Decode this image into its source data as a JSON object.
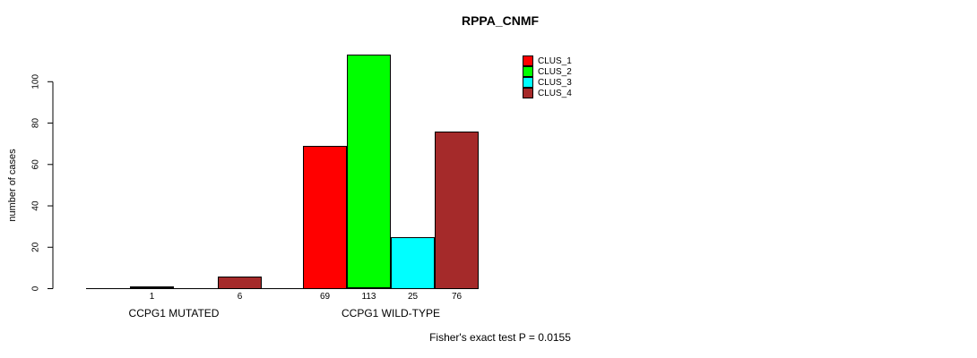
{
  "title": "RPPA_CNMF",
  "ylabel": "number of cases",
  "footer": "Fisher's exact test P = 0.0155",
  "yticks": [
    0,
    20,
    40,
    60,
    80,
    100
  ],
  "legend": [
    {
      "label": "CLUS_1",
      "color": "#FF0000"
    },
    {
      "label": "CLUS_2",
      "color": "#00FF00"
    },
    {
      "label": "CLUS_3",
      "color": "#00FFFF"
    },
    {
      "label": "CLUS_4",
      "color": "#A52A2A"
    }
  ],
  "chart_data": {
    "type": "bar",
    "title": "RPPA_CNMF",
    "ylabel": "number of cases",
    "xlabel": "",
    "ylim": [
      0,
      113
    ],
    "grid": false,
    "legend_position": "top-right",
    "series_names": [
      "CLUS_1",
      "CLUS_2",
      "CLUS_3",
      "CLUS_4"
    ],
    "colors": [
      "#FF0000",
      "#00FF00",
      "#00FFFF",
      "#A52A2A"
    ],
    "groups": [
      {
        "label": "CCPG1 MUTATED",
        "values": [
          0,
          1,
          0,
          6
        ],
        "bar_labels": [
          "",
          "1",
          "",
          "6"
        ]
      },
      {
        "label": "CCPG1 WILD-TYPE",
        "values": [
          69,
          113,
          25,
          76
        ],
        "bar_labels": [
          "69",
          "113",
          "25",
          "76"
        ]
      }
    ],
    "annotation": "Fisher's exact test P = 0.0155"
  }
}
